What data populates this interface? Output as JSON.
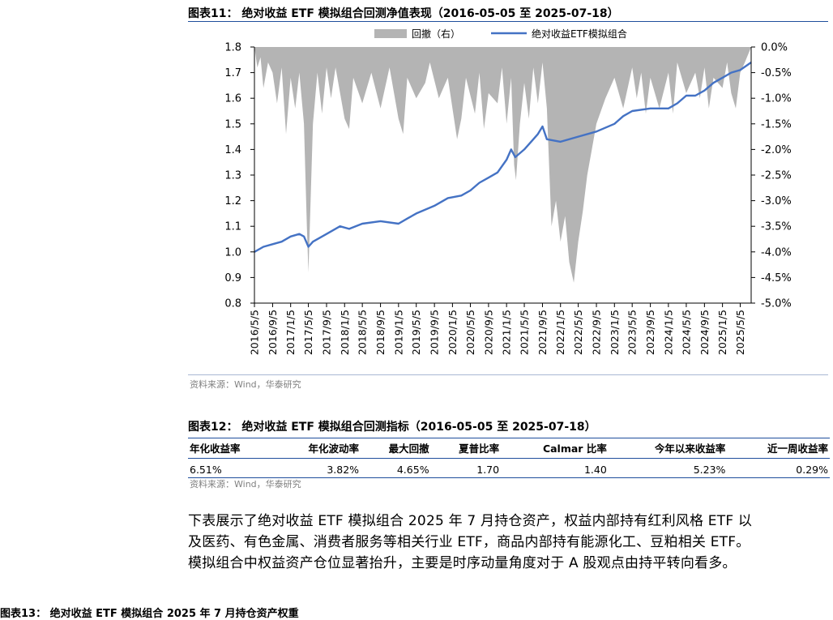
{
  "figure": {
    "title": "图表11：  绝对收益 ETF 模拟组合回测净值表现（2016-05-05 至 2025-07-18）",
    "source": "资料来源：Wind，华泰研究"
  },
  "chart_data": {
    "type": "line",
    "title": "",
    "legend": [
      "回撤（右）",
      "绝对收益ETF模拟组合"
    ],
    "legend_position": "top-center",
    "colors": {
      "line": "#4472c4",
      "drawdown": "#b4b4b4"
    },
    "x_tick_labels": [
      "2016/5/5",
      "2016/9/5",
      "2017/1/5",
      "2017/5/5",
      "2017/9/5",
      "2018/1/5",
      "2018/5/5",
      "2018/9/5",
      "2019/1/5",
      "2019/5/5",
      "2019/9/5",
      "2020/1/5",
      "2020/5/5",
      "2020/9/5",
      "2021/1/5",
      "2021/5/5",
      "2021/9/5",
      "2022/1/5",
      "2022/5/5",
      "2022/9/5",
      "2023/1/5",
      "2023/5/5",
      "2023/9/5",
      "2024/1/5",
      "2024/5/5",
      "2024/9/5",
      "2025/1/5",
      "2025/5/5"
    ],
    "y_left": {
      "ticks": [
        "1.8",
        "1.7",
        "1.6",
        "1.5",
        "1.4",
        "1.3",
        "1.2",
        "1.1",
        "1.0",
        "0.9",
        "0.8"
      ],
      "range": [
        0.8,
        1.8
      ]
    },
    "y_right": {
      "ticks": [
        "0.0%",
        "-0.5%",
        "-1.0%",
        "-1.5%",
        "-2.0%",
        "-2.5%",
        "-3.0%",
        "-3.5%",
        "-4.0%",
        "-4.5%",
        "-5.0%"
      ],
      "range": [
        -5.0,
        0.0
      ]
    },
    "grid": false,
    "series": [
      {
        "name": "绝对收益ETF模拟组合",
        "axis": "left",
        "points": [
          [
            "2016/5/5",
            1.0
          ],
          [
            "2016/7/5",
            1.02
          ],
          [
            "2016/9/5",
            1.03
          ],
          [
            "2016/11/5",
            1.04
          ],
          [
            "2017/1/5",
            1.06
          ],
          [
            "2017/3/5",
            1.07
          ],
          [
            "2017/4/5",
            1.06
          ],
          [
            "2017/5/5",
            1.02
          ],
          [
            "2017/6/5",
            1.04
          ],
          [
            "2017/9/5",
            1.07
          ],
          [
            "2017/12/5",
            1.1
          ],
          [
            "2018/2/5",
            1.09
          ],
          [
            "2018/5/5",
            1.11
          ],
          [
            "2018/9/5",
            1.12
          ],
          [
            "2019/1/5",
            1.11
          ],
          [
            "2019/3/5",
            1.13
          ],
          [
            "2019/5/5",
            1.15
          ],
          [
            "2019/9/5",
            1.18
          ],
          [
            "2019/12/5",
            1.21
          ],
          [
            "2020/3/5",
            1.22
          ],
          [
            "2020/5/5",
            1.24
          ],
          [
            "2020/7/5",
            1.27
          ],
          [
            "2020/9/5",
            1.29
          ],
          [
            "2020/11/5",
            1.31
          ],
          [
            "2021/1/5",
            1.36
          ],
          [
            "2021/2/5",
            1.4
          ],
          [
            "2021/3/5",
            1.37
          ],
          [
            "2021/5/5",
            1.4
          ],
          [
            "2021/7/5",
            1.44
          ],
          [
            "2021/8/5",
            1.46
          ],
          [
            "2021/9/5",
            1.49
          ],
          [
            "2021/10/5",
            1.44
          ],
          [
            "2022/1/5",
            1.43
          ],
          [
            "2022/5/5",
            1.45
          ],
          [
            "2022/9/5",
            1.47
          ],
          [
            "2023/1/5",
            1.5
          ],
          [
            "2023/3/5",
            1.53
          ],
          [
            "2023/5/5",
            1.55
          ],
          [
            "2023/9/5",
            1.56
          ],
          [
            "2024/1/5",
            1.56
          ],
          [
            "2024/3/5",
            1.58
          ],
          [
            "2024/5/5",
            1.61
          ],
          [
            "2024/7/5",
            1.61
          ],
          [
            "2024/9/5",
            1.63
          ],
          [
            "2024/11/5",
            1.66
          ],
          [
            "2025/1/5",
            1.68
          ],
          [
            "2025/3/5",
            1.7
          ],
          [
            "2025/5/5",
            1.71
          ],
          [
            "2025/7/18",
            1.74
          ]
        ]
      },
      {
        "name": "回撤（右）",
        "axis": "right",
        "type": "area",
        "points": [
          [
            "2016/5/5",
            0
          ],
          [
            "2016/5/25",
            -0.4
          ],
          [
            "2016/6/15",
            -0.2
          ],
          [
            "2016/7/5",
            -0.8
          ],
          [
            "2016/8/5",
            -0.3
          ],
          [
            "2016/9/5",
            -0.5
          ],
          [
            "2016/10/5",
            -1.1
          ],
          [
            "2016/11/5",
            -0.4
          ],
          [
            "2016/12/5",
            -1.7
          ],
          [
            "2017/1/5",
            -0.6
          ],
          [
            "2017/2/5",
            -1.2
          ],
          [
            "2017/3/5",
            -0.5
          ],
          [
            "2017/4/5",
            -1.5
          ],
          [
            "2017/4/25",
            -3.5
          ],
          [
            "2017/5/5",
            -4.4
          ],
          [
            "2017/5/20",
            -3.0
          ],
          [
            "2017/6/5",
            -1.5
          ],
          [
            "2017/7/5",
            -0.5
          ],
          [
            "2017/8/5",
            -1.3
          ],
          [
            "2017/9/5",
            -0.4
          ],
          [
            "2017/10/5",
            -1.0
          ],
          [
            "2017/11/5",
            -0.4
          ],
          [
            "2018/1/5",
            -1.4
          ],
          [
            "2018/2/5",
            -1.6
          ],
          [
            "2018/3/5",
            -0.6
          ],
          [
            "2018/5/5",
            -1.1
          ],
          [
            "2018/7/5",
            -0.5
          ],
          [
            "2018/9/5",
            -1.2
          ],
          [
            "2018/11/5",
            -0.4
          ],
          [
            "2019/1/5",
            -1.4
          ],
          [
            "2019/2/5",
            -1.7
          ],
          [
            "2019/3/5",
            -0.6
          ],
          [
            "2019/5/5",
            -1.0
          ],
          [
            "2019/7/5",
            -0.7
          ],
          [
            "2019/8/5",
            -0.3
          ],
          [
            "2019/10/5",
            -1.0
          ],
          [
            "2019/12/5",
            -0.6
          ],
          [
            "2020/2/5",
            -1.8
          ],
          [
            "2020/3/5",
            -1.4
          ],
          [
            "2020/4/5",
            -0.6
          ],
          [
            "2020/6/5",
            -1.3
          ],
          [
            "2020/7/5",
            -0.5
          ],
          [
            "2020/8/5",
            -1.6
          ],
          [
            "2020/9/5",
            -0.9
          ],
          [
            "2020/11/5",
            -1.1
          ],
          [
            "2020/12/5",
            -0.4
          ],
          [
            "2021/1/5",
            -1.5
          ],
          [
            "2021/2/5",
            -0.6
          ],
          [
            "2021/2/25",
            -2.3
          ],
          [
            "2021/3/10",
            -2.6
          ],
          [
            "2021/4/5",
            -1.5
          ],
          [
            "2021/5/5",
            -0.7
          ],
          [
            "2021/6/5",
            -1.4
          ],
          [
            "2021/7/5",
            -0.4
          ],
          [
            "2021/8/5",
            -1.1
          ],
          [
            "2021/9/5",
            -0.3
          ],
          [
            "2021/10/5",
            -1.2
          ],
          [
            "2021/11/5",
            -3.5
          ],
          [
            "2021/12/5",
            -3.0
          ],
          [
            "2022/1/5",
            -3.8
          ],
          [
            "2022/2/5",
            -3.3
          ],
          [
            "2022/3/5",
            -4.2
          ],
          [
            "2022/4/5",
            -4.6
          ],
          [
            "2022/5/5",
            -3.8
          ],
          [
            "2022/6/5",
            -3.2
          ],
          [
            "2022/7/5",
            -2.5
          ],
          [
            "2022/8/5",
            -2.0
          ],
          [
            "2022/9/5",
            -1.5
          ],
          [
            "2022/11/5",
            -1.0
          ],
          [
            "2023/1/5",
            -0.6
          ],
          [
            "2023/3/5",
            -1.2
          ],
          [
            "2023/5/5",
            -0.4
          ],
          [
            "2023/6/5",
            -1.0
          ],
          [
            "2023/7/5",
            -0.5
          ],
          [
            "2023/8/5",
            -1.3
          ],
          [
            "2023/9/5",
            -0.6
          ],
          [
            "2023/11/5",
            -1.2
          ],
          [
            "2024/1/5",
            -0.5
          ],
          [
            "2024/2/5",
            -1.3
          ],
          [
            "2024/3/5",
            -0.3
          ],
          [
            "2024/5/5",
            -0.9
          ],
          [
            "2024/7/5",
            -0.5
          ],
          [
            "2024/8/5",
            -1.0
          ],
          [
            "2024/9/5",
            -0.4
          ],
          [
            "2024/10/5",
            -1.2
          ],
          [
            "2024/11/5",
            -0.6
          ],
          [
            "2025/1/5",
            -0.8
          ],
          [
            "2025/2/5",
            -0.3
          ],
          [
            "2025/3/5",
            -0.9
          ],
          [
            "2025/4/5",
            -1.2
          ],
          [
            "2025/5/5",
            -0.5
          ],
          [
            "2025/6/5",
            -0.3
          ],
          [
            "2025/7/18",
            0
          ]
        ]
      }
    ]
  },
  "table": {
    "title": "图表12：  绝对收益 ETF 模拟组合回测指标（2016-05-05 至 2025-07-18）",
    "headers": [
      "年化收益率",
      "年化波动率",
      "最大回撤",
      "夏普比率",
      "Calmar 比率",
      "今年以来收益率",
      "近一周收益率"
    ],
    "rows": [
      [
        "6.51%",
        "3.82%",
        "4.65%",
        "1.70",
        "1.40",
        "5.23%",
        "0.29%"
      ]
    ],
    "source": "资料来源：Wind，华泰研究"
  },
  "paragraph": {
    "lines": [
      "下表展示了绝对收益 ETF 模拟组合 2025 年 7 月持仓资产，权益内部持有红利风格 ETF 以",
      "及医药、有色金属、消费者服务等相关行业 ETF，商品内部持有能源化工、豆粕相关 ETF。",
      "模拟组合中权益资产仓位显著抬升，主要是时序动量角度对于 A 股观点由持平转向看多。"
    ]
  },
  "next_figure_title": "图表13：  绝对收益 ETF 模拟组合 2025 年 7 月持仓资产权重"
}
